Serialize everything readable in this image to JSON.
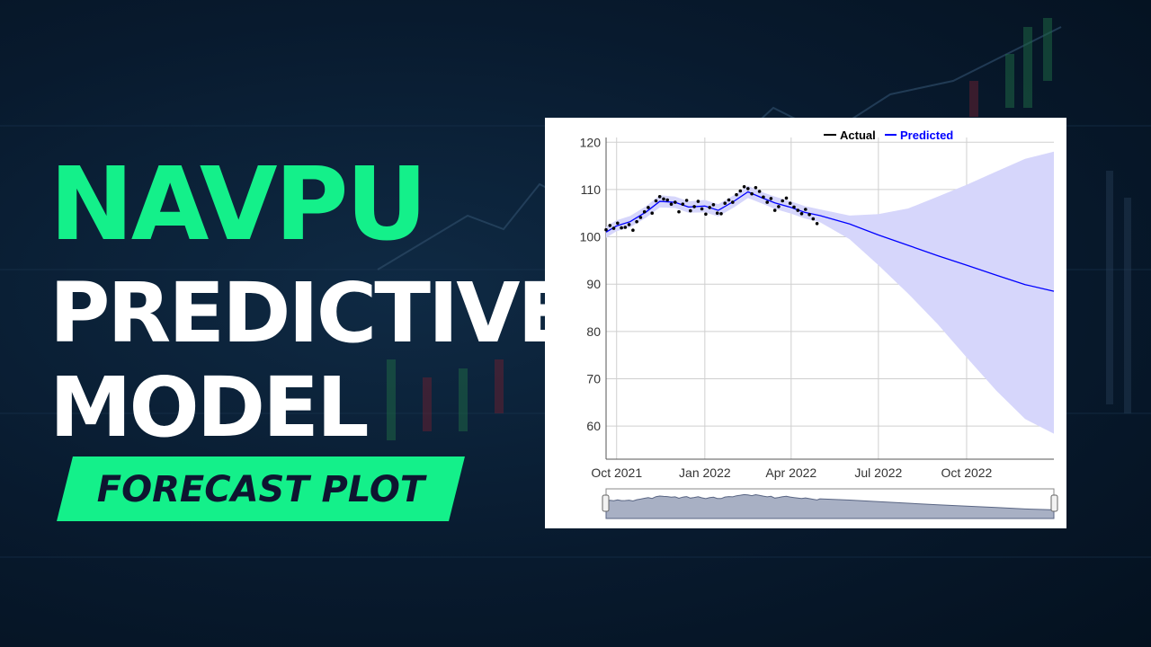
{
  "title": {
    "line1": "NAVPU",
    "line2": "PREDICTIVE",
    "line3": "MODEL",
    "badge": "FORECAST PLOT"
  },
  "colors": {
    "accent": "#14f08a",
    "background": "#081a2e",
    "actual": "#000000",
    "predicted": "#0000ff",
    "band": "#d6d6fb"
  },
  "chart_data": {
    "type": "line",
    "legend": {
      "placement": "top-right",
      "entries": [
        {
          "label": "Actual",
          "color": "#000000"
        },
        {
          "label": "Predicted",
          "color": "#0000ff"
        }
      ]
    },
    "x_ticks": [
      "Oct 2021",
      "Jan 2022",
      "Apr 2022",
      "Jul 2022",
      "Oct 2022"
    ],
    "y_ticks": [
      60,
      70,
      80,
      90,
      100,
      110,
      120
    ],
    "xlim": [
      "2021-09-20",
      "2022-12-31"
    ],
    "ylim": [
      53,
      121
    ],
    "grid": true,
    "range_selector": true,
    "series": [
      {
        "name": "Predicted",
        "x": [
          "2021-09-20",
          "2021-10-01",
          "2021-10-15",
          "2021-11-01",
          "2021-11-15",
          "2021-12-01",
          "2021-12-15",
          "2022-01-01",
          "2022-01-15",
          "2022-02-01",
          "2022-02-15",
          "2022-03-01",
          "2022-03-15",
          "2022-04-01",
          "2022-04-15",
          "2022-05-01",
          "2022-06-01",
          "2022-07-01",
          "2022-08-01",
          "2022-09-01",
          "2022-10-01",
          "2022-11-01",
          "2022-12-01",
          "2022-12-31"
        ],
        "y": [
          101.0,
          102.3,
          103.2,
          105.3,
          107.5,
          107.3,
          106.3,
          106.5,
          105.6,
          107.6,
          109.5,
          108.3,
          107.2,
          106.2,
          105.2,
          104.5,
          102.7,
          100.4,
          98.2,
          96.0,
          94.0,
          91.9,
          89.9,
          88.5
        ],
        "lower": [
          99.8,
          101.2,
          102.0,
          104.1,
          106.2,
          106.1,
          105.1,
          105.2,
          104.3,
          106.3,
          108.2,
          107.1,
          105.9,
          104.9,
          103.9,
          103.1,
          99.5,
          94.0,
          88.0,
          81.5,
          74.5,
          67.5,
          61.5,
          58.4
        ],
        "upper": [
          102.2,
          103.5,
          104.4,
          106.5,
          108.8,
          108.5,
          107.5,
          107.8,
          106.9,
          108.9,
          110.8,
          109.5,
          108.5,
          107.5,
          106.5,
          105.8,
          104.5,
          104.8,
          106.0,
          108.5,
          111.0,
          113.8,
          116.5,
          118.0
        ]
      },
      {
        "name": "Actual",
        "x": [
          "2021-09-20",
          "2021-09-24",
          "2021-09-28",
          "2021-10-02",
          "2021-10-06",
          "2021-10-10",
          "2021-10-14",
          "2021-10-18",
          "2021-10-22",
          "2021-10-26",
          "2021-10-30",
          "2021-11-03",
          "2021-11-07",
          "2021-11-11",
          "2021-11-15",
          "2021-11-19",
          "2021-11-23",
          "2021-11-27",
          "2021-12-01",
          "2021-12-05",
          "2021-12-09",
          "2021-12-13",
          "2021-12-17",
          "2021-12-21",
          "2021-12-25",
          "2021-12-29",
          "2022-01-02",
          "2022-01-06",
          "2022-01-10",
          "2022-01-14",
          "2022-01-18",
          "2022-01-22",
          "2022-01-26",
          "2022-01-30",
          "2022-02-03",
          "2022-02-07",
          "2022-02-11",
          "2022-02-15",
          "2022-02-19",
          "2022-02-23",
          "2022-02-27",
          "2022-03-03",
          "2022-03-07",
          "2022-03-11",
          "2022-03-15",
          "2022-03-19",
          "2022-03-23",
          "2022-03-27",
          "2022-03-31",
          "2022-04-04",
          "2022-04-08",
          "2022-04-12",
          "2022-04-16",
          "2022-04-20",
          "2022-04-24",
          "2022-04-28"
        ],
        "y": [
          101.5,
          102.4,
          101.8,
          102.9,
          101.9,
          102.0,
          102.6,
          101.4,
          103.2,
          104.1,
          105.3,
          106.2,
          105.0,
          107.6,
          108.5,
          108.0,
          107.8,
          106.9,
          107.3,
          105.3,
          106.9,
          107.7,
          105.5,
          106.4,
          107.5,
          105.9,
          104.8,
          106.2,
          106.8,
          105.0,
          104.9,
          107.1,
          107.8,
          107.3,
          108.9,
          109.7,
          110.6,
          110.2,
          109.1,
          110.4,
          109.6,
          108.4,
          107.3,
          108.1,
          105.6,
          106.4,
          107.6,
          108.2,
          107.1,
          106.3,
          105.6,
          104.9,
          105.8,
          104.7,
          103.8,
          102.8
        ]
      }
    ]
  }
}
